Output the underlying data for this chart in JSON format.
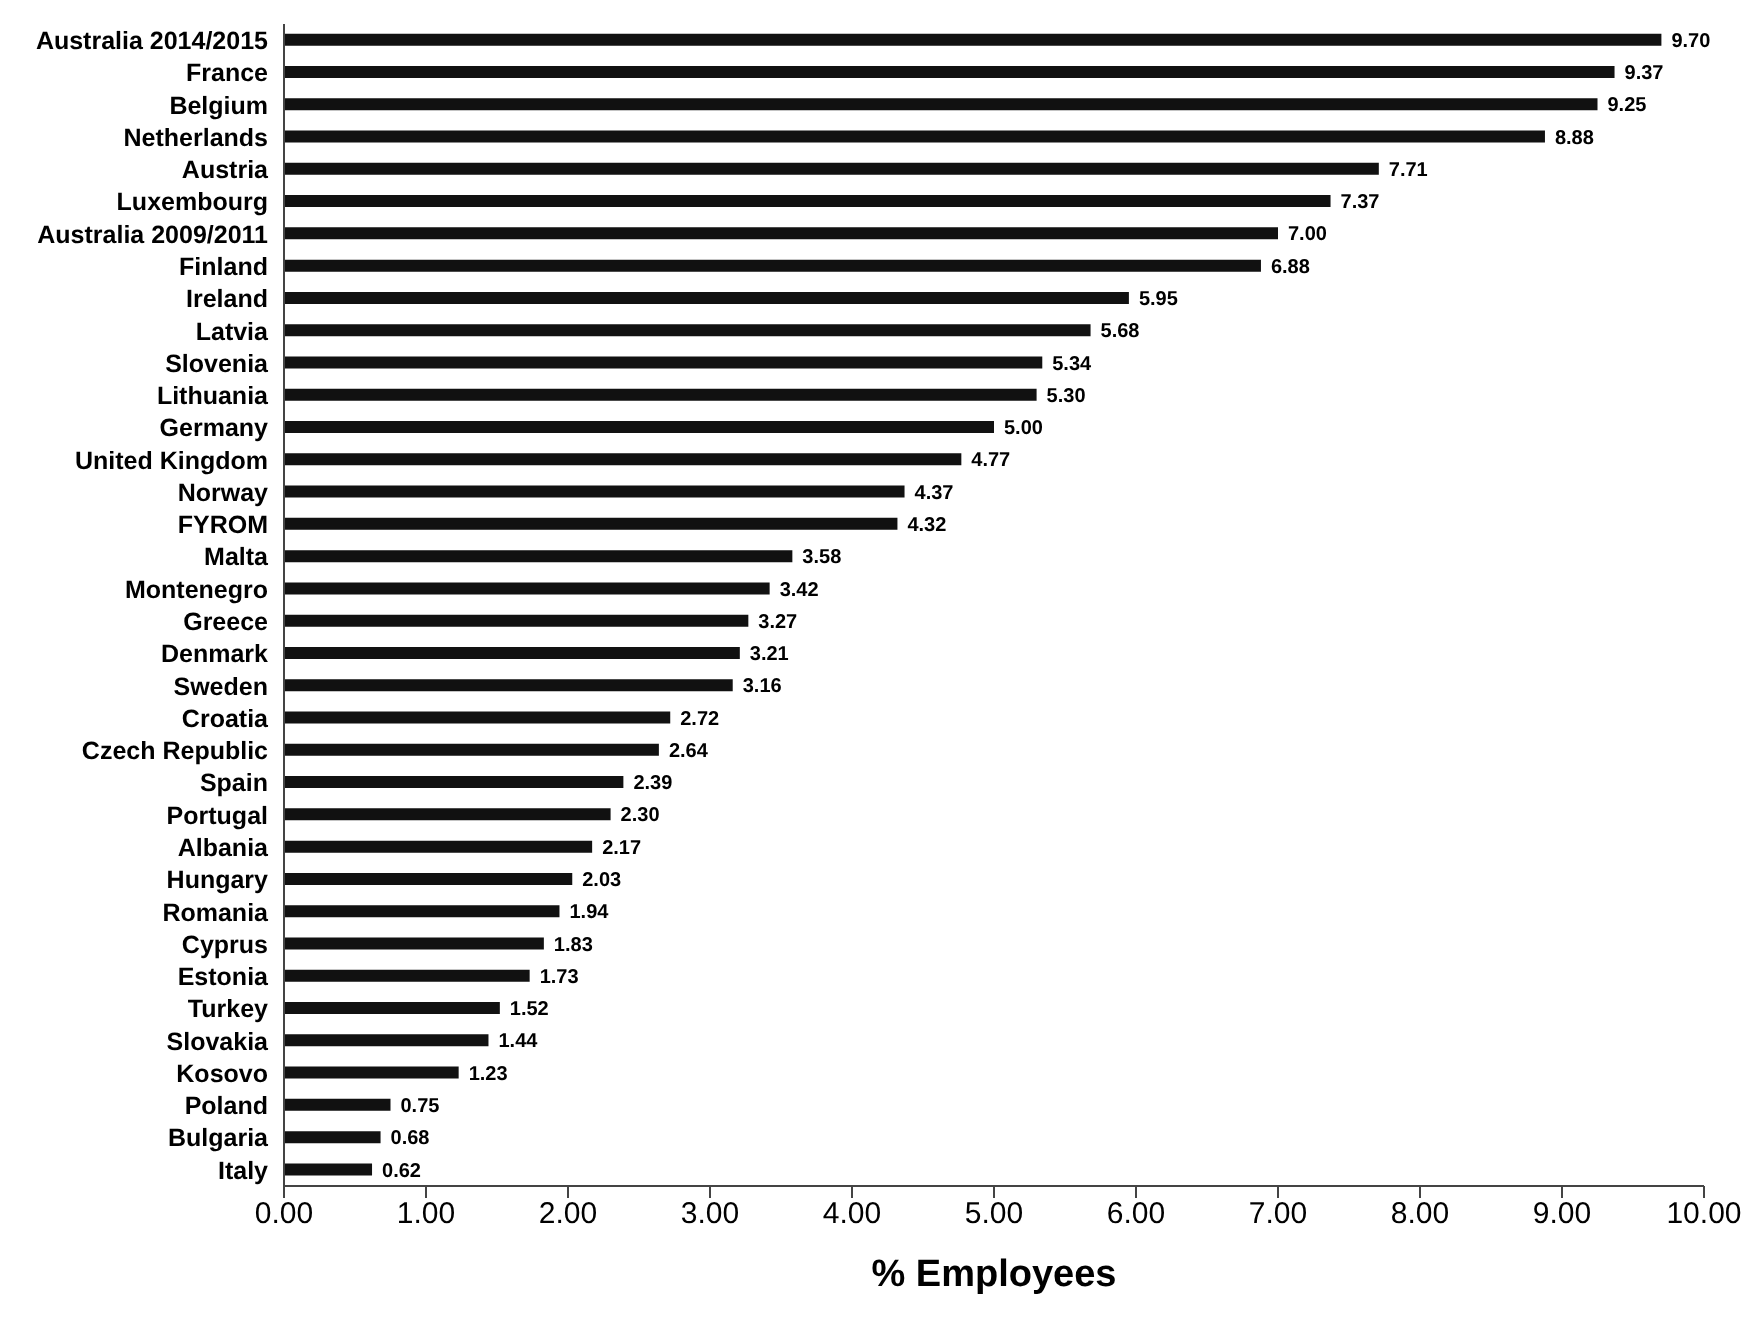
{
  "chart_data": {
    "type": "bar",
    "orientation": "horizontal",
    "xlabel": "% Employees",
    "categories": [
      "Australia 2014/2015",
      "France",
      "Belgium",
      "Netherlands",
      "Austria",
      "Luxembourg",
      "Australia 2009/2011",
      "Finland",
      "Ireland",
      "Latvia",
      "Slovenia",
      "Lithuania",
      "Germany",
      "United Kingdom",
      "Norway",
      "FYROM",
      "Malta",
      "Montenegro",
      "Greece",
      "Denmark",
      "Sweden",
      "Croatia",
      "Czech Republic",
      "Spain",
      "Portugal",
      "Albania",
      "Hungary",
      "Romania",
      "Cyprus",
      "Estonia",
      "Turkey",
      "Slovakia",
      "Kosovo",
      "Poland",
      "Bulgaria",
      "Italy"
    ],
    "values": [
      9.7,
      9.37,
      9.25,
      8.88,
      7.71,
      7.37,
      7.0,
      6.88,
      5.95,
      5.68,
      5.34,
      5.3,
      5.0,
      4.77,
      4.37,
      4.32,
      3.58,
      3.42,
      3.27,
      3.21,
      3.16,
      2.72,
      2.64,
      2.39,
      2.3,
      2.17,
      2.03,
      1.94,
      1.83,
      1.73,
      1.52,
      1.44,
      1.23,
      0.75,
      0.68,
      0.62
    ],
    "value_labels": [
      "9.70",
      "9.37",
      "9.25",
      "8.88",
      "7.71",
      "7.37",
      "7.00",
      "6.88",
      "5.95",
      "5.68",
      "5.34",
      "5.30",
      "5.00",
      "4.77",
      "4.37",
      "4.32",
      "3.58",
      "3.42",
      "3.27",
      "3.21",
      "3.16",
      "2.72",
      "2.64",
      "2.39",
      "2.30",
      "2.17",
      "2.03",
      "1.94",
      "1.83",
      "1.73",
      "1.52",
      "1.44",
      "1.23",
      "0.75",
      "0.68",
      "0.62"
    ],
    "color": "#111111",
    "xlim": [
      0,
      10
    ],
    "xticks": [
      {
        "value": 0,
        "label": "0.00"
      },
      {
        "value": 1,
        "label": "1.00"
      },
      {
        "value": 2,
        "label": "2.00"
      },
      {
        "value": 3,
        "label": "3.00"
      },
      {
        "value": 4,
        "label": "4.00"
      },
      {
        "value": 5,
        "label": "5.00"
      },
      {
        "value": 6,
        "label": "6.00"
      },
      {
        "value": 7,
        "label": "7.00"
      },
      {
        "value": 8,
        "label": "8.00"
      },
      {
        "value": 9,
        "label": "9.00"
      },
      {
        "value": 10,
        "label": "10.00"
      }
    ],
    "grid": false,
    "legend": false
  }
}
